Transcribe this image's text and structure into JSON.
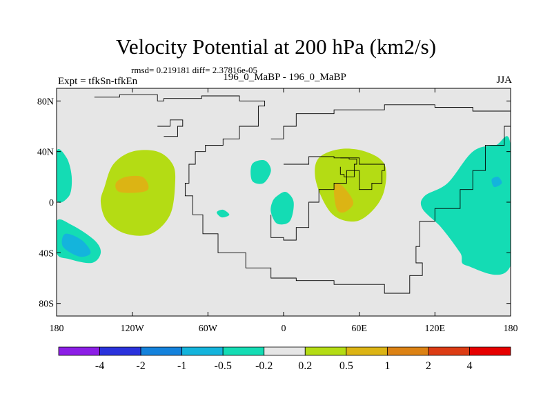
{
  "chart_data": {
    "type": "heatmap",
    "title": "Velocity Potential at 200 hPa (km2/s)",
    "subtitle_stats": "rmsd= 0.219181 diff= 2.37816e-05",
    "left_string": "Expt = tfkSn-tfkEn",
    "center_string": "196_0_MaBP - 196_0_MaBP",
    "right_string": "JJA",
    "x_ticks": [
      "180",
      "120W",
      "60W",
      "0",
      "60E",
      "120E",
      "180"
    ],
    "x_values": [
      -180,
      -120,
      -60,
      0,
      60,
      120,
      180
    ],
    "y_ticks": [
      "80N",
      "40N",
      "0",
      "40S",
      "80S"
    ],
    "y_values": [
      80,
      40,
      0,
      -40,
      -80
    ],
    "xlim": [
      -180,
      180
    ],
    "ylim": [
      -90,
      90
    ],
    "colorbar": {
      "labels": [
        "-4",
        "-2",
        "-1",
        "-0.5",
        "-0.2",
        "0.2",
        "0.5",
        "1",
        "2",
        "4"
      ],
      "colors": [
        "#8c1ee6",
        "#2a32dc",
        "#1482dc",
        "#14b4dc",
        "#14dcb4",
        "#e6e6e6",
        "#b4dc14",
        "#dcb414",
        "#dc8214",
        "#dc3c14",
        "#e60000"
      ]
    },
    "contour_regions": [
      {
        "name": "pacific-positive-outer",
        "level": "0.2 to 0.5",
        "color": "#b4dc14",
        "points": [
          [
            -142,
            12
          ],
          [
            -135,
            30
          ],
          [
            -120,
            40
          ],
          [
            -100,
            40
          ],
          [
            -88,
            30
          ],
          [
            -86,
            15
          ],
          [
            -90,
            -10
          ],
          [
            -105,
            -25
          ],
          [
            -125,
            -25
          ],
          [
            -140,
            -15
          ],
          [
            -145,
            0
          ]
        ]
      },
      {
        "name": "pacific-positive-inner",
        "level": "0.5 to 1",
        "color": "#dcb414",
        "points": [
          [
            -133,
            15
          ],
          [
            -125,
            20
          ],
          [
            -112,
            20
          ],
          [
            -107,
            12
          ],
          [
            -112,
            8
          ],
          [
            -130,
            8
          ]
        ]
      },
      {
        "name": "africa-positive-outer",
        "level": "0.2 to 0.5",
        "color": "#b4dc14",
        "points": [
          [
            28,
            35
          ],
          [
            45,
            42
          ],
          [
            65,
            40
          ],
          [
            80,
            30
          ],
          [
            80,
            10
          ],
          [
            72,
            -5
          ],
          [
            58,
            -15
          ],
          [
            42,
            -12
          ],
          [
            32,
            0
          ],
          [
            25,
            20
          ]
        ]
      },
      {
        "name": "africa-positive-inner",
        "level": "0.5 to 1",
        "color": "#dcb414",
        "points": [
          [
            40,
            12
          ],
          [
            45,
            14
          ],
          [
            53,
            5
          ],
          [
            55,
            -2
          ],
          [
            48,
            -8
          ],
          [
            42,
            -5
          ]
        ]
      },
      {
        "name": "sw-pacific-negative-outer",
        "level": "-0.5 to -0.2",
        "color": "#14dcb4",
        "points": [
          [
            -180,
            -15
          ],
          [
            -168,
            -18
          ],
          [
            -150,
            -30
          ],
          [
            -145,
            -40
          ],
          [
            -152,
            -48
          ],
          [
            -170,
            -45
          ],
          [
            -180,
            -40
          ]
        ]
      },
      {
        "name": "sw-pacific-negative-inner",
        "level": "-1 to -0.5",
        "color": "#14b4dc",
        "points": [
          [
            -173,
            -25
          ],
          [
            -160,
            -30
          ],
          [
            -153,
            -40
          ],
          [
            -162,
            -43
          ],
          [
            -175,
            -35
          ]
        ]
      },
      {
        "name": "nw-pacific-negative",
        "level": "-0.5 to -0.2",
        "color": "#14dcb4",
        "points": [
          [
            -180,
            40
          ],
          [
            -172,
            35
          ],
          [
            -168,
            20
          ],
          [
            -170,
            5
          ],
          [
            -180,
            2
          ]
        ]
      },
      {
        "name": "dateline-east-negative",
        "level": "-0.5 to -0.2",
        "color": "#14dcb4",
        "points": [
          [
            180,
            45
          ],
          [
            168,
            45
          ],
          [
            150,
            40
          ],
          [
            130,
            15
          ],
          [
            112,
            5
          ],
          [
            110,
            -5
          ],
          [
            125,
            -20
          ],
          [
            140,
            -40
          ],
          [
            145,
            -50
          ],
          [
            180,
            -50
          ]
        ]
      },
      {
        "name": "dateline-east-negative-inner",
        "level": "-1 to -0.5",
        "color": "#14b4dc",
        "points": [
          [
            165,
            18
          ],
          [
            170,
            20
          ],
          [
            173,
            15
          ],
          [
            167,
            12
          ]
        ]
      },
      {
        "name": "atlantic-negative-small",
        "level": "-0.5 to -0.2",
        "color": "#14dcb4",
        "points": [
          [
            -25,
            30
          ],
          [
            -15,
            33
          ],
          [
            -10,
            25
          ],
          [
            -16,
            15
          ],
          [
            -25,
            17
          ]
        ]
      },
      {
        "name": "atlantic-negative-center",
        "level": "-0.5 to -0.2",
        "color": "#14dcb4",
        "points": [
          [
            -5,
            5
          ],
          [
            2,
            8
          ],
          [
            8,
            0
          ],
          [
            5,
            -15
          ],
          [
            -5,
            -17
          ],
          [
            -10,
            -8
          ],
          [
            -9,
            0
          ]
        ]
      },
      {
        "name": "south-america-negative-small",
        "level": "-0.5 to -0.2",
        "color": "#14dcb4",
        "points": [
          [
            -53,
            -8
          ],
          [
            -48,
            -6
          ],
          [
            -43,
            -10
          ],
          [
            -49,
            -12
          ]
        ]
      }
    ],
    "coastlines": [
      [
        [
          -150,
          83
        ],
        [
          -130,
          85
        ],
        [
          -100,
          80
        ],
        [
          -95,
          82
        ],
        [
          -65,
          84
        ],
        [
          -35,
          80
        ],
        [
          -15,
          76
        ],
        [
          -20,
          60
        ],
        [
          -35,
          50
        ],
        [
          -48,
          45
        ],
        [
          -62,
          40
        ],
        [
          -70,
          30
        ],
        [
          -75,
          15
        ],
        [
          -78,
          5
        ],
        [
          -72,
          -10
        ],
        [
          -64,
          -25
        ],
        [
          -52,
          -40
        ],
        [
          -30,
          -52
        ],
        [
          -10,
          -60
        ],
        [
          10,
          -62
        ],
        [
          40,
          -65
        ],
        [
          80,
          -72
        ],
        [
          100,
          -58
        ],
        [
          110,
          -48
        ],
        [
          105,
          -35
        ],
        [
          108,
          -15
        ],
        [
          120,
          -5
        ],
        [
          140,
          10
        ],
        [
          150,
          25
        ],
        [
          160,
          45
        ],
        [
          175,
          60
        ],
        [
          180,
          70
        ]
      ],
      [
        [
          -10,
          50
        ],
        [
          0,
          60
        ],
        [
          10,
          70
        ],
        [
          40,
          73
        ],
        [
          80,
          77
        ],
        [
          120,
          75
        ],
        [
          150,
          72
        ],
        [
          180,
          76
        ]
      ],
      [
        [
          0,
          30
        ],
        [
          20,
          36
        ],
        [
          40,
          35
        ],
        [
          60,
          30
        ],
        [
          75,
          30
        ],
        [
          80,
          25
        ],
        [
          78,
          15
        ],
        [
          70,
          10
        ],
        [
          60,
          25
        ],
        [
          50,
          15
        ],
        [
          40,
          10
        ],
        [
          28,
          0
        ],
        [
          20,
          -20
        ],
        [
          10,
          -30
        ],
        [
          0,
          -28
        ],
        [
          -10,
          -10
        ]
      ],
      [
        [
          45,
          35
        ],
        [
          52,
          34
        ],
        [
          58,
          30
        ],
        [
          56,
          20
        ],
        [
          48,
          22
        ],
        [
          45,
          28
        ]
      ],
      [
        [
          -100,
          60
        ],
        [
          -90,
          65
        ],
        [
          -80,
          60
        ],
        [
          -84,
          52
        ],
        [
          -95,
          52
        ]
      ]
    ]
  }
}
